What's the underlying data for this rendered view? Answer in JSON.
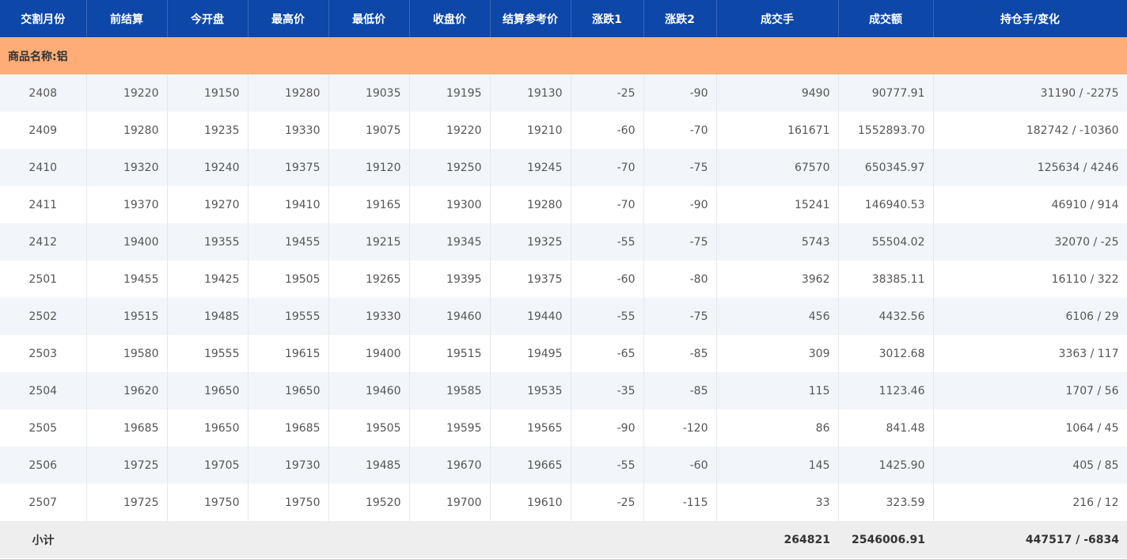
{
  "table": {
    "headers": [
      "交割月份",
      "前结算",
      "今开盘",
      "最高价",
      "最低价",
      "收盘价",
      "结算参考价",
      "涨跌1",
      "涨跌2",
      "成交手",
      "成交额",
      "持仓手/变化"
    ],
    "group": "商品名称:铝",
    "rows": [
      [
        "2408",
        "19220",
        "19150",
        "19280",
        "19035",
        "19195",
        "19130",
        "-25",
        "-90",
        "9490",
        "90777.91",
        "31190 / -2275"
      ],
      [
        "2409",
        "19280",
        "19235",
        "19330",
        "19075",
        "19220",
        "19210",
        "-60",
        "-70",
        "161671",
        "1552893.70",
        "182742 / -10360"
      ],
      [
        "2410",
        "19320",
        "19240",
        "19375",
        "19120",
        "19250",
        "19245",
        "-70",
        "-75",
        "67570",
        "650345.97",
        "125634 / 4246"
      ],
      [
        "2411",
        "19370",
        "19270",
        "19410",
        "19165",
        "19300",
        "19280",
        "-70",
        "-90",
        "15241",
        "146940.53",
        "46910 / 914"
      ],
      [
        "2412",
        "19400",
        "19355",
        "19455",
        "19215",
        "19345",
        "19325",
        "-55",
        "-75",
        "5743",
        "55504.02",
        "32070 / -25"
      ],
      [
        "2501",
        "19455",
        "19425",
        "19505",
        "19265",
        "19395",
        "19375",
        "-60",
        "-80",
        "3962",
        "38385.11",
        "16110 / 322"
      ],
      [
        "2502",
        "19515",
        "19485",
        "19555",
        "19330",
        "19460",
        "19440",
        "-55",
        "-75",
        "456",
        "4432.56",
        "6106 / 29"
      ],
      [
        "2503",
        "19580",
        "19555",
        "19615",
        "19400",
        "19515",
        "19495",
        "-65",
        "-85",
        "309",
        "3012.68",
        "3363 / 117"
      ],
      [
        "2504",
        "19620",
        "19650",
        "19650",
        "19460",
        "19585",
        "19535",
        "-35",
        "-85",
        "115",
        "1123.46",
        "1707 / 56"
      ],
      [
        "2505",
        "19685",
        "19650",
        "19685",
        "19505",
        "19595",
        "19565",
        "-90",
        "-120",
        "86",
        "841.48",
        "1064 / 45"
      ],
      [
        "2506",
        "19725",
        "19705",
        "19730",
        "19485",
        "19670",
        "19665",
        "-55",
        "-60",
        "145",
        "1425.90",
        "405 / 85"
      ],
      [
        "2507",
        "19725",
        "19750",
        "19750",
        "19520",
        "19700",
        "19610",
        "-25",
        "-115",
        "33",
        "323.59",
        "216 / 12"
      ]
    ],
    "subtotal": {
      "label": "小计",
      "volume": "264821",
      "turnover": "2546006.91",
      "open_interest": "447517 / -6834"
    }
  }
}
